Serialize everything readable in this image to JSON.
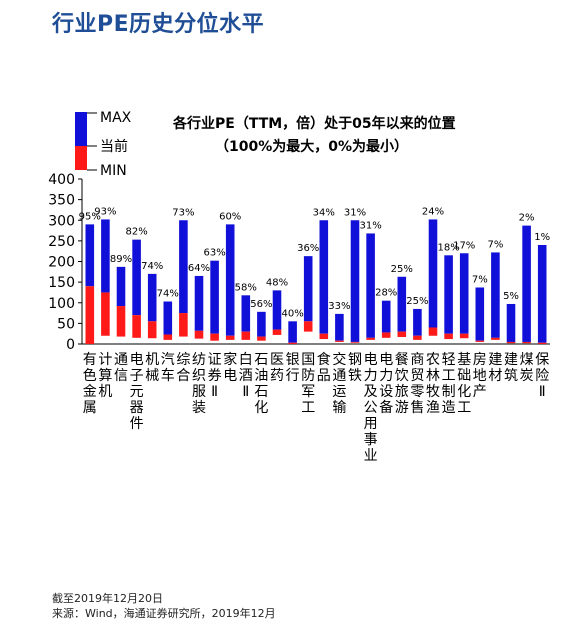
{
  "page": {
    "title": "行业PE历史分位水平",
    "note_date": "截至2019年12月20日",
    "note_source": "来源：Wind，海通证券研究所，2019年12月"
  },
  "colors": {
    "max": "#1010d8",
    "current": "#ff1a1a"
  },
  "chart_data": {
    "type": "bar",
    "title_line1": "各行业PE（TTM，倍）处于05年以来的位置",
    "title_line2": "（100%为最大，0%为最小）",
    "legend": [
      "MAX",
      "当前",
      "MIN"
    ],
    "ylim": [
      0,
      400
    ],
    "yticks": [
      0,
      50,
      100,
      150,
      200,
      250,
      300,
      350,
      400
    ],
    "categories": [
      "有色金属",
      "计算机",
      "通信",
      "电子元器件",
      "机械",
      "汽车",
      "综合",
      "纺织服装",
      "证券Ⅱ",
      "家电",
      "白酒Ⅱ",
      "石油石化",
      "医药",
      "银行",
      "国防军工",
      "食品",
      "交通运输",
      "钢铁",
      "电力及公用事业",
      "电力设备",
      "餐饮旅游",
      "商贸零售",
      "农林牧渔",
      "轻工制造",
      "基础化工",
      "房地产",
      "建材",
      "建筑",
      "煤炭",
      "保险Ⅱ"
    ],
    "max": [
      290,
      302,
      187,
      253,
      170,
      103,
      300,
      165,
      202,
      290,
      118,
      78,
      130,
      55,
      213,
      300,
      73,
      300,
      268,
      105,
      163,
      85,
      302,
      215,
      220,
      137,
      222,
      97,
      287,
      240
    ],
    "current": [
      140,
      125,
      92,
      70,
      55,
      23,
      75,
      32,
      25,
      20,
      30,
      18,
      35,
      3,
      55,
      25,
      8,
      5,
      15,
      28,
      30,
      20,
      40,
      25,
      25,
      8,
      15,
      5,
      5,
      3
    ],
    "min": [
      0,
      20,
      18,
      15,
      14,
      10,
      18,
      13,
      8,
      10,
      10,
      8,
      22,
      0,
      30,
      12,
      5,
      3,
      10,
      15,
      17,
      10,
      20,
      12,
      14,
      5,
      10,
      2,
      2,
      0
    ],
    "percentiles": [
      "95%",
      "93%",
      "89%",
      "82%",
      "74%",
      "74%",
      "73%",
      "64%",
      "63%",
      "60%",
      "58%",
      "56%",
      "48%",
      "40%",
      "36%",
      "34%",
      "33%",
      "31%",
      "31%",
      "28%",
      "25%",
      "25%",
      "24%",
      "18%",
      "17%",
      "7%",
      "7%",
      "5%",
      "2%",
      "1%"
    ]
  }
}
